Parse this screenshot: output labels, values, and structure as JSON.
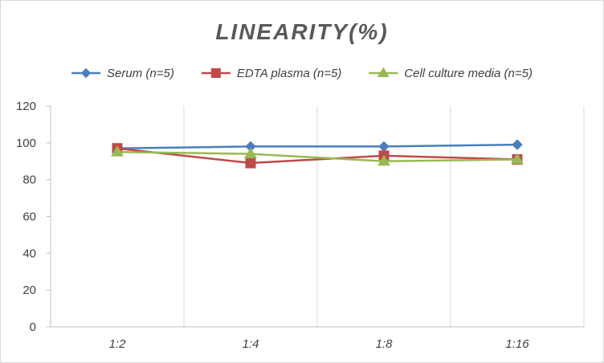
{
  "chart_data": {
    "type": "line",
    "title": "LINEARITY(%)",
    "xlabel": "",
    "ylabel": "",
    "categories": [
      "1:2",
      "1:4",
      "1:8",
      "1:16"
    ],
    "ylim": [
      0,
      120
    ],
    "yticks": [
      0,
      20,
      40,
      60,
      80,
      100,
      120
    ],
    "grid": "vertical",
    "legend_position": "top",
    "series": [
      {
        "name": "Serum (n=5)",
        "values": [
          97,
          98,
          98,
          99
        ],
        "color": "#4a7ebb",
        "marker": "diamond"
      },
      {
        "name": "EDTA plasma (n=5)",
        "values": [
          97,
          89,
          93,
          91
        ],
        "color": "#be4b48",
        "marker": "square"
      },
      {
        "name": "Cell culture media (n=5)",
        "values": [
          95,
          94,
          90,
          91
        ],
        "color": "#98b954",
        "marker": "triangle"
      }
    ]
  }
}
